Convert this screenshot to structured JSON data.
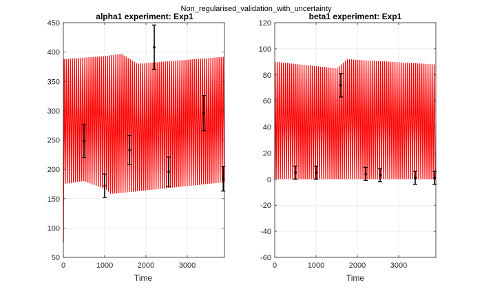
{
  "figure": {
    "suptitle": "Non_regularised_validation_with_uncertainty"
  },
  "chart_data": [
    {
      "type": "line",
      "title": "alpha1 experiment: Exp1",
      "xlabel": "Time",
      "ylabel": "",
      "xlim": [
        0,
        3900
      ],
      "ylim": [
        50,
        450
      ],
      "xticks": [
        "0",
        "1000",
        "2000",
        "3000"
      ],
      "yticks": [
        "50",
        "100",
        "150",
        "200",
        "250",
        "300",
        "350",
        "400",
        "450"
      ],
      "grid": true,
      "series_color": "#ff0000",
      "oscillating_band": {
        "upper": [
          [
            20,
            388
          ],
          [
            1000,
            393
          ],
          [
            1400,
            397
          ],
          [
            1800,
            380
          ],
          [
            3900,
            392
          ]
        ],
        "lower": [
          [
            20,
            175
          ],
          [
            500,
            180
          ],
          [
            1050,
            165
          ],
          [
            1150,
            158
          ],
          [
            3900,
            178
          ]
        ],
        "start_value": 75,
        "period": 50
      },
      "measurements": [
        {
          "x": 500,
          "y": 248,
          "err": 28
        },
        {
          "x": 1000,
          "y": 172,
          "err": 20
        },
        {
          "x": 1600,
          "y": 233,
          "err": 25
        },
        {
          "x": 2200,
          "y": 408,
          "err": 38
        },
        {
          "x": 2550,
          "y": 196,
          "err": 25
        },
        {
          "x": 3400,
          "y": 296,
          "err": 30
        },
        {
          "x": 3870,
          "y": 184,
          "err": 21
        }
      ]
    },
    {
      "type": "line",
      "title": "beta1 experiment: Exp1",
      "xlabel": "Time",
      "ylabel": "",
      "xlim": [
        0,
        3900
      ],
      "ylim": [
        -60,
        120
      ],
      "xticks": [
        "0",
        "1000",
        "2000",
        "3000"
      ],
      "yticks": [
        "-60",
        "-40",
        "-20",
        "0",
        "20",
        "40",
        "60",
        "80",
        "100",
        "120"
      ],
      "grid": true,
      "series_color": "#ff0000",
      "oscillating_band": {
        "upper": [
          [
            10,
            90
          ],
          [
            1500,
            85
          ],
          [
            1750,
            92
          ],
          [
            3900,
            88
          ]
        ],
        "lower": [
          [
            10,
            0
          ],
          [
            3900,
            0
          ]
        ],
        "start_value": 0,
        "period": 50
      },
      "measurements": [
        {
          "x": 500,
          "y": 5,
          "err": 5
        },
        {
          "x": 1000,
          "y": 5,
          "err": 5
        },
        {
          "x": 1600,
          "y": 72,
          "err": 9
        },
        {
          "x": 2200,
          "y": 4,
          "err": 5
        },
        {
          "x": 2550,
          "y": 3,
          "err": 5
        },
        {
          "x": 3400,
          "y": 1,
          "err": 5
        },
        {
          "x": 3870,
          "y": 1,
          "err": 5
        }
      ]
    }
  ]
}
